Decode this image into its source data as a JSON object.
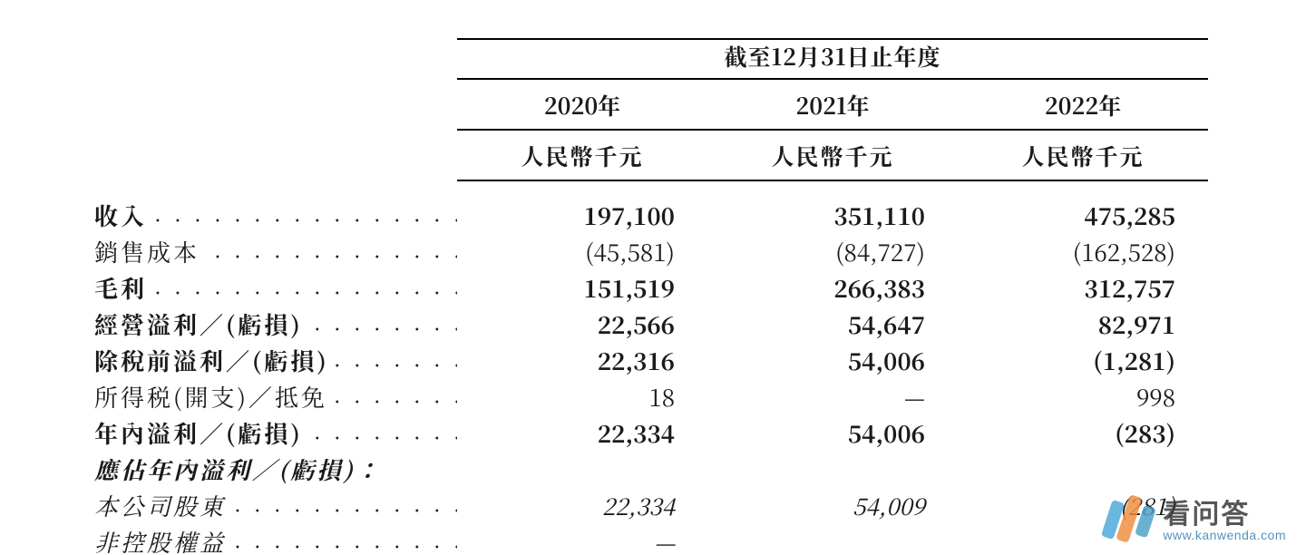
{
  "colors": {
    "text": "#1a1a1a",
    "rule": "#000000",
    "background": "#ffffff",
    "logo_bar1": "#49a7d9",
    "logo_bar2": "#f08c3a",
    "logo_bar3": "#4aa0c8",
    "logo_cn": "#333333",
    "logo_url": "#2e7cb0"
  },
  "header": {
    "spanner": "截至12月31日止年度",
    "years": [
      "2020年",
      "2021年",
      "2022年"
    ],
    "unit": "人民幣千元"
  },
  "rows": [
    {
      "label": "收入",
      "bold": true,
      "italic": false,
      "leader": true,
      "v": [
        "197,100",
        "351,110",
        "475,285"
      ]
    },
    {
      "label": "銷售成本",
      "bold": false,
      "italic": false,
      "leader": true,
      "v": [
        "(45,581)",
        "(84,727)",
        "(162,528)"
      ]
    },
    {
      "label": "毛利",
      "bold": true,
      "italic": false,
      "leader": true,
      "v": [
        "151,519",
        "266,383",
        "312,757"
      ]
    },
    {
      "label": "經營溢利／(虧損)",
      "bold": true,
      "italic": false,
      "leader": true,
      "v": [
        "22,566",
        "54,647",
        "82,971"
      ]
    },
    {
      "label": "除稅前溢利／(虧損)",
      "bold": true,
      "italic": false,
      "leader": true,
      "v": [
        "22,316",
        "54,006",
        "(1,281)"
      ]
    },
    {
      "label": "所得税(開支)／抵免",
      "bold": false,
      "italic": false,
      "leader": true,
      "v": [
        "18",
        "—",
        "998"
      ]
    },
    {
      "label": "年內溢利／(虧損)",
      "bold": true,
      "italic": false,
      "leader": true,
      "v": [
        "22,334",
        "54,006",
        "(283)"
      ]
    },
    {
      "label": "應佔年內溢利／(虧損)：",
      "bold": true,
      "italic": true,
      "leader": false,
      "v": [
        "",
        "",
        ""
      ]
    },
    {
      "label": "本公司股東",
      "bold": false,
      "italic": true,
      "leader": true,
      "v": [
        "22,334",
        "54,009",
        "(281)"
      ]
    },
    {
      "label": "非控股權益",
      "bold": false,
      "italic": true,
      "leader": true,
      "v": [
        "—",
        "",
        ""
      ]
    }
  ],
  "watermark": {
    "cn": "看问答",
    "url": "www.kanwenda.com"
  }
}
